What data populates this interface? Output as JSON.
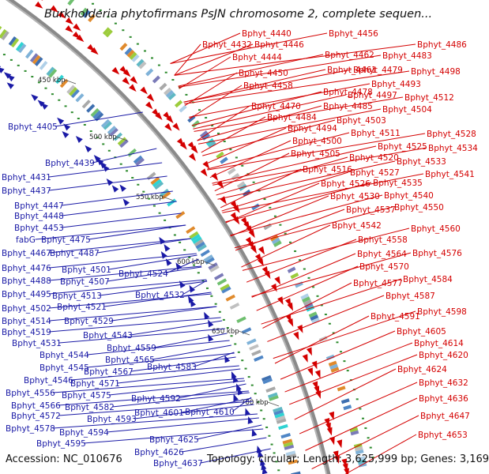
{
  "title": "Burkholderia phytofirmans PsJN chromosome 2, complete sequen...",
  "footer": {
    "accession": "Accession: NC_010676",
    "summary": "Topology: circular; Length: 3,625,999 bp; Genes: 3,169"
  },
  "colors": {
    "forward": "#d40000",
    "reverse": "#1a1aa6",
    "backbone": "#8a8a8a"
  },
  "scale_marks": [
    "450 kbp",
    "500 kbp",
    "550 kbp",
    "600 kbp",
    "650 kbp",
    "700 kbp"
  ],
  "left_labels": [
    "Bphyt_4405",
    "Bphyt_4439",
    "Bphyt_4431",
    "Bphyt_4437",
    "Bphyt_4447",
    "Bphyt_4448",
    "Bphyt_4453",
    "fabG",
    "Bphyt_4475",
    "Bphyt_4467",
    "Bphyt_4487",
    "Bphyt_4476",
    "Bphyt_4501",
    "Bphyt_4488",
    "Bphyt_4507",
    "Bphyt_4524",
    "Bphyt_4495",
    "Bphyt_4513",
    "Bphyt_4532",
    "Bphyt_4502",
    "Bphyt_4521",
    "Bphyt_4514",
    "Bphyt_4529",
    "Bphyt_4519",
    "Bphyt_4543",
    "Bphyt_4531",
    "Bphyt_4559",
    "Bphyt_4544",
    "Bphyt_4565",
    "Bphyt_4545",
    "Bphyt_4567",
    "Bphyt_4583",
    "Bphyt_4546",
    "Bphyt_4571",
    "Bphyt_4556",
    "Bphyt_4575",
    "Bphyt_4566",
    "Bphyt_4582",
    "Bphyt_4592",
    "Bphyt_4572",
    "Bphyt_4593",
    "Bphyt_4601",
    "Bphyt_4610",
    "Bphyt_4578",
    "Bphyt_4594",
    "Bphyt_4595",
    "Bphyt_4625",
    "Bphyt_4626",
    "Bphyt_4637"
  ],
  "right_labels": [
    "Bphyt_4440",
    "Bphyt_4456",
    "Bphyt_4432",
    "Bphyt_4446",
    "Bphyt_4486",
    "Bphyt_4444",
    "Bphyt_4462",
    "Bphyt_4483",
    "Bphyt_4450",
    "Bphyt_4461",
    "Bphyt_4479",
    "Bphyt_4498",
    "Bphyt_4458",
    "Bphyt_4493",
    "Bphyt_4478",
    "Bphyt_4497",
    "Bphyt_4512",
    "Bphyt_4470",
    "Bphyt_4485",
    "Bphyt_4504",
    "Bphyt_4484",
    "Bphyt_4503",
    "Bphyt_4494",
    "Bphyt_4511",
    "Bphyt_4528",
    "Bphyt_4500",
    "Bphyt_4525",
    "Bphyt_4534",
    "Bphyt_4505",
    "Bphyt_4520",
    "Bphyt_4533",
    "Bphyt_4516",
    "Bphyt_4527",
    "Bphyt_4541",
    "Bphyt_4526",
    "Bphyt_4535",
    "Bphyt_4530",
    "Bphyt_4540",
    "Bphyt_4537",
    "Bphyt_4550",
    "Bphyt_4542",
    "Bphyt_4560",
    "Bphyt_4558",
    "Bphyt_4564",
    "Bphyt_4576",
    "Bphyt_4570",
    "Bphyt_4584",
    "Bphyt_4577",
    "Bphyt_4587",
    "Bphyt_4598",
    "Bphyt_4591",
    "Bphyt_4605",
    "Bphyt_4614",
    "Bphyt_4620",
    "Bphyt_4624",
    "Bphyt_4632",
    "Bphyt_4636",
    "Bphyt_4647",
    "Bphyt_4653"
  ]
}
